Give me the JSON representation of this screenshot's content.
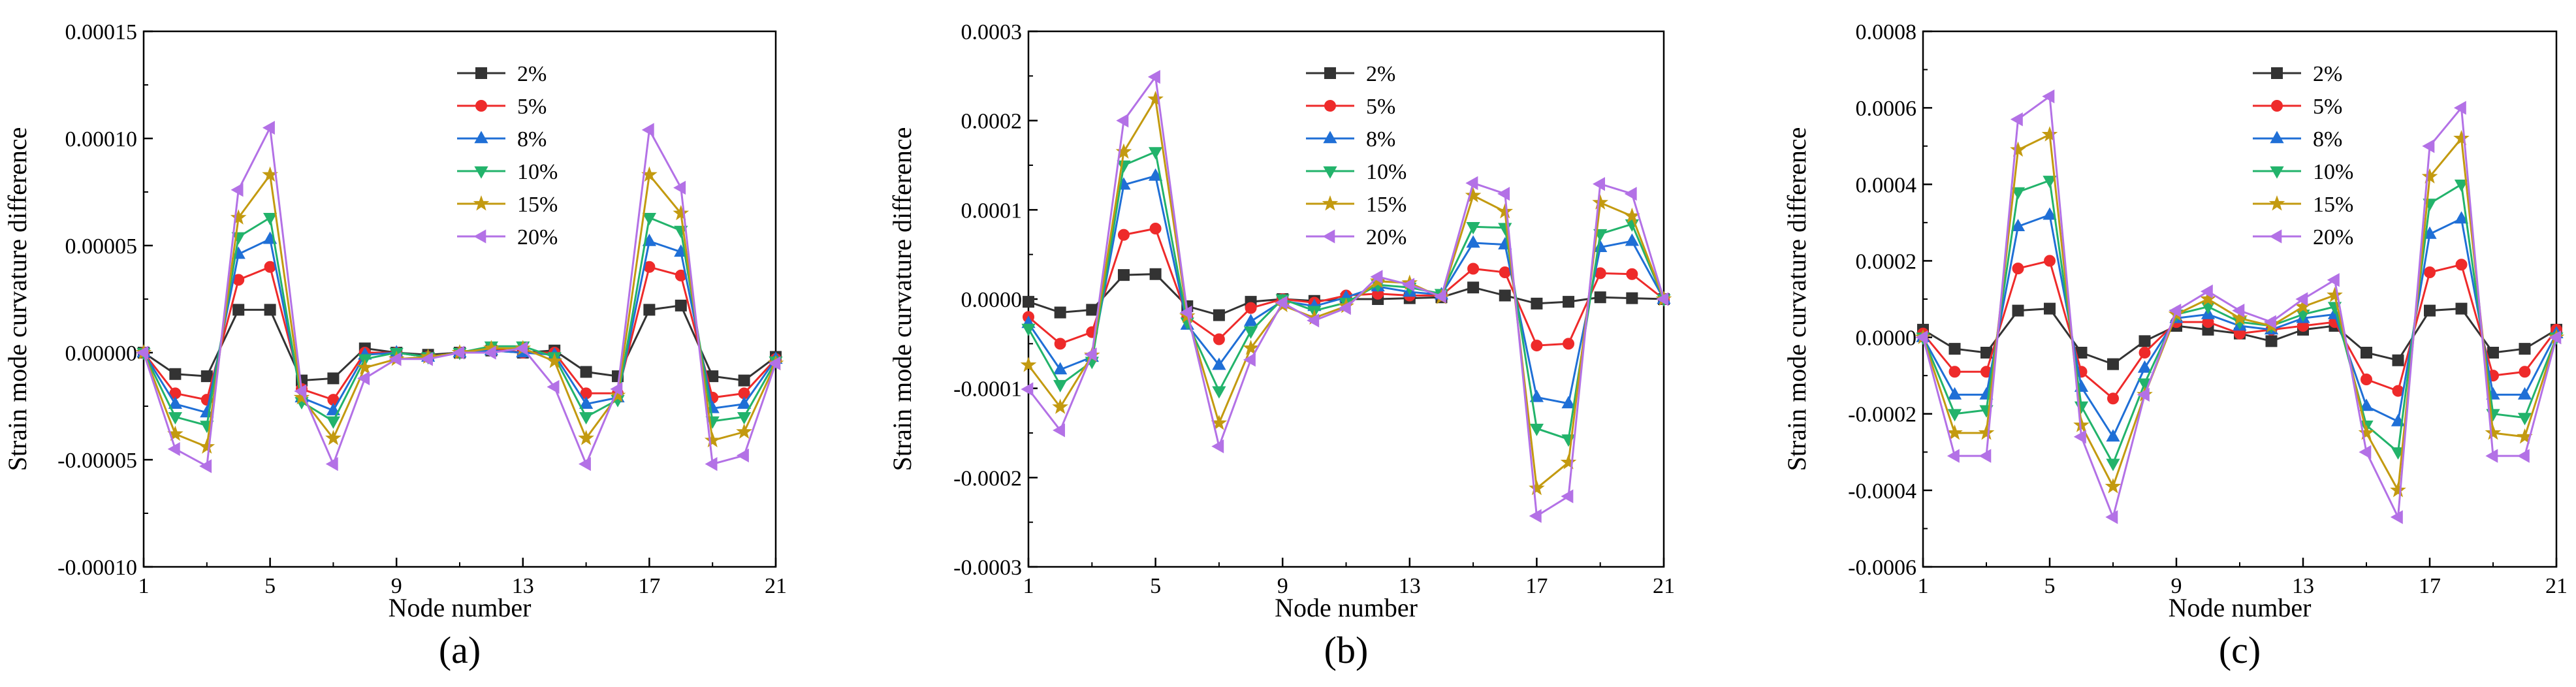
{
  "figure": {
    "panels": [
      {
        "label": "(a)"
      },
      {
        "label": "(b)"
      },
      {
        "label": "(c)"
      }
    ]
  },
  "series_style": [
    {
      "name": "2%",
      "color": "#333333",
      "marker": "square"
    },
    {
      "name": "5%",
      "color": "#ee2a2a",
      "marker": "circle"
    },
    {
      "name": "8%",
      "color": "#1f6fd6",
      "marker": "triangle-up"
    },
    {
      "name": "10%",
      "color": "#22b36b",
      "marker": "triangle-down"
    },
    {
      "name": "15%",
      "color": "#c39a10",
      "marker": "star"
    },
    {
      "name": "20%",
      "color": "#b371e6",
      "marker": "triangle-left"
    }
  ],
  "chart_data": [
    {
      "type": "line",
      "title": "",
      "xlabel": "Node number",
      "ylabel": "Strain mode curvature difference",
      "xlim": [
        1,
        21
      ],
      "ylim": [
        -0.0001,
        0.00015
      ],
      "xticks": [
        1,
        5,
        9,
        13,
        17,
        21
      ],
      "yticks": [
        -0.0001,
        -5e-05,
        0,
        5e-05,
        0.0001,
        0.00015
      ],
      "ytick_labels": [
        "-0.00010",
        "-0.00005",
        "0.00000",
        "0.00005",
        "0.00010",
        "0.00015"
      ],
      "legend_position": "top-center",
      "x": [
        1,
        2,
        3,
        4,
        5,
        6,
        7,
        8,
        9,
        10,
        11,
        12,
        13,
        14,
        15,
        16,
        17,
        18,
        19,
        20,
        21
      ],
      "series": [
        {
          "name": "2%",
          "values": [
            0,
            -1e-05,
            -1.1e-05,
            2e-05,
            2e-05,
            -1.3e-05,
            -1.2e-05,
            2e-06,
            0,
            -1e-06,
            0,
            1e-06,
            0,
            1e-06,
            -9e-06,
            -1.1e-05,
            2e-05,
            2.2e-05,
            -1.1e-05,
            -1.3e-05,
            -2e-06
          ]
        },
        {
          "name": "5%",
          "values": [
            0,
            -1.9e-05,
            -2.2e-05,
            3.4e-05,
            4e-05,
            -1.7e-05,
            -2.2e-05,
            0,
            0,
            -2e-06,
            0,
            2e-06,
            0,
            0,
            -1.9e-05,
            -1.9e-05,
            4e-05,
            3.6e-05,
            -2.1e-05,
            -1.9e-05,
            -3e-06
          ]
        },
        {
          "name": "8%",
          "values": [
            0,
            -2.4e-05,
            -2.8e-05,
            4.6e-05,
            5.3e-05,
            -2.1e-05,
            -2.7e-05,
            -1e-06,
            0,
            -2e-06,
            0,
            1e-06,
            0,
            -1e-06,
            -2.4e-05,
            -2.1e-05,
            5.2e-05,
            4.7e-05,
            -2.6e-05,
            -2.4e-05,
            -3e-06
          ]
        },
        {
          "name": "10%",
          "values": [
            0,
            -3e-05,
            -3.4e-05,
            5.4e-05,
            6.3e-05,
            -2.3e-05,
            -3.2e-05,
            -3e-06,
            0,
            -2e-06,
            0,
            3e-06,
            3e-06,
            -2e-06,
            -3e-05,
            -2.2e-05,
            6.3e-05,
            5.7e-05,
            -3.2e-05,
            -3e-05,
            -4e-06
          ]
        },
        {
          "name": "15%",
          "values": [
            0,
            -3.8e-05,
            -4.4e-05,
            6.3e-05,
            8.3e-05,
            -2.1e-05,
            -4e-05,
            -7e-06,
            -3e-06,
            -2e-06,
            0,
            2e-06,
            2e-06,
            -4e-06,
            -4e-05,
            -2e-05,
            8.3e-05,
            6.5e-05,
            -4.1e-05,
            -3.7e-05,
            -5e-06
          ]
        },
        {
          "name": "20%",
          "values": [
            0,
            -4.5e-05,
            -5.3e-05,
            7.6e-05,
            0.000105,
            -1.8e-05,
            -5.2e-05,
            -1.2e-05,
            -3e-06,
            -3e-06,
            0,
            0,
            2e-06,
            -1.6e-05,
            -5.2e-05,
            -1.7e-05,
            0.000104,
            7.7e-05,
            -5.2e-05,
            -4.8e-05,
            -5e-06
          ]
        }
      ]
    },
    {
      "type": "line",
      "title": "",
      "xlabel": "Node number",
      "ylabel": "Strain mode curvature difference",
      "xlim": [
        1,
        21
      ],
      "ylim": [
        -0.0003,
        0.0003
      ],
      "xticks": [
        1,
        5,
        9,
        13,
        17,
        21
      ],
      "yticks": [
        -0.0003,
        -0.0002,
        -0.0001,
        0,
        0.0001,
        0.0002,
        0.0003
      ],
      "ytick_labels": [
        "-0.0003",
        "-0.0002",
        "-0.0001",
        "0.0000",
        "0.0001",
        "0.0002",
        "0.0003"
      ],
      "legend_position": "top-center",
      "x": [
        1,
        2,
        3,
        4,
        5,
        6,
        7,
        8,
        9,
        10,
        11,
        12,
        13,
        14,
        15,
        16,
        17,
        18,
        19,
        20,
        21
      ],
      "series": [
        {
          "name": "2%",
          "values": [
            -3e-06,
            -1.5e-05,
            -1.2e-05,
            2.7e-05,
            2.8e-05,
            -8e-06,
            -1.8e-05,
            -3e-06,
            0,
            -2e-06,
            0,
            0,
            1e-06,
            2e-06,
            1.3e-05,
            4e-06,
            -5e-06,
            -3e-06,
            2e-06,
            1e-06,
            0
          ]
        },
        {
          "name": "5%",
          "values": [
            -2e-05,
            -5e-05,
            -3.7e-05,
            7.2e-05,
            7.9e-05,
            -2e-05,
            -4.5e-05,
            -1e-05,
            0,
            -4e-06,
            4e-06,
            6e-06,
            4e-06,
            4e-06,
            3.4e-05,
            3e-05,
            -5.2e-05,
            -5e-05,
            2.9e-05,
            2.8e-05,
            0
          ]
        },
        {
          "name": "8%",
          "values": [
            -2.7e-05,
            -7.9e-05,
            -6.5e-05,
            0.000128,
            0.000138,
            -2.9e-05,
            -7.4e-05,
            -2.5e-05,
            -2e-06,
            -8e-06,
            2e-06,
            1.4e-05,
            8e-06,
            5e-06,
            6.3e-05,
            6.1e-05,
            -0.00011,
            -0.000117,
            5.8e-05,
            6.5e-05,
            0
          ]
        },
        {
          "name": "10%",
          "values": [
            -3.3e-05,
            -9.6e-05,
            -7e-05,
            0.00015,
            0.000165,
            -2.6e-05,
            -0.000103,
            -3.6e-05,
            0,
            -1.3e-05,
            -4e-06,
            1.6e-05,
            1.3e-05,
            6e-06,
            8.1e-05,
            8e-05,
            -0.000145,
            -0.000157,
            7.3e-05,
            8.4e-05,
            0
          ]
        },
        {
          "name": "15%",
          "values": [
            -7.4e-05,
            -0.000121,
            -6.3e-05,
            0.000165,
            0.000224,
            -1.9e-05,
            -0.000139,
            -5.5e-05,
            -7e-06,
            -2.1e-05,
            -8e-06,
            2e-05,
            1.8e-05,
            2e-06,
            0.000116,
            9.8e-05,
            -0.000212,
            -0.000183,
            0.000108,
            9.3e-05,
            0
          ]
        },
        {
          "name": "20%",
          "values": [
            -0.000101,
            -0.000147,
            -6.2e-05,
            0.0002,
            0.000249,
            -1.5e-05,
            -0.000165,
            -6.8e-05,
            -4e-06,
            -2.4e-05,
            -1e-05,
            2.5e-05,
            1.6e-05,
            3e-06,
            0.00013,
            0.000118,
            -0.000243,
            -0.000221,
            0.000129,
            0.000118,
            0
          ]
        }
      ]
    },
    {
      "type": "line",
      "title": "",
      "xlabel": "Node number",
      "ylabel": "Strain mode curvature difference",
      "xlim": [
        1,
        21
      ],
      "ylim": [
        -0.0006,
        0.0008
      ],
      "xticks": [
        1,
        5,
        9,
        13,
        17,
        21
      ],
      "yticks": [
        -0.0006,
        -0.0004,
        -0.0002,
        0,
        0.0002,
        0.0004,
        0.0006,
        0.0008
      ],
      "ytick_labels": [
        "-0.0006",
        "-0.0004",
        "-0.0002",
        "0.0000",
        "0.0002",
        "0.0004",
        "0.0006",
        "0.0008"
      ],
      "legend_position": "top-center",
      "x": [
        1,
        2,
        3,
        4,
        5,
        6,
        7,
        8,
        9,
        10,
        11,
        12,
        13,
        14,
        15,
        16,
        17,
        18,
        19,
        20,
        21
      ],
      "series": [
        {
          "name": "2%",
          "values": [
            2e-05,
            -3e-05,
            -4e-05,
            7e-05,
            7.5e-05,
            -4e-05,
            -7e-05,
            -1e-05,
            3e-05,
            2e-05,
            1e-05,
            -1e-05,
            2e-05,
            3e-05,
            -4e-05,
            -6e-05,
            7e-05,
            7.5e-05,
            -4e-05,
            -3e-05,
            2e-05
          ]
        },
        {
          "name": "5%",
          "values": [
            1e-05,
            -9e-05,
            -9e-05,
            0.00018,
            0.0002,
            -9e-05,
            -0.00016,
            -4e-05,
            4e-05,
            4e-05,
            1e-05,
            2e-05,
            3e-05,
            4e-05,
            -0.00011,
            -0.00014,
            0.00017,
            0.00019,
            -0.0001,
            -9e-05,
            2e-05
          ]
        },
        {
          "name": "8%",
          "values": [
            0,
            -0.00015,
            -0.00015,
            0.00029,
            0.00032,
            -0.00013,
            -0.00026,
            -8e-05,
            5e-05,
            6e-05,
            3e-05,
            2e-05,
            5e-05,
            6e-05,
            -0.00018,
            -0.00022,
            0.00027,
            0.00031,
            -0.00015,
            -0.00015,
            1e-05
          ]
        },
        {
          "name": "10%",
          "values": [
            0,
            -0.0002,
            -0.00019,
            0.00038,
            0.00041,
            -0.00018,
            -0.00033,
            -0.00012,
            6e-05,
            8e-05,
            4e-05,
            3e-05,
            6e-05,
            8e-05,
            -0.00023,
            -0.0003,
            0.00035,
            0.0004,
            -0.0002,
            -0.00021,
            0
          ]
        },
        {
          "name": "15%",
          "values": [
            0,
            -0.00025,
            -0.00025,
            0.00049,
            0.00053,
            -0.00023,
            -0.00039,
            -0.00015,
            6e-05,
            0.0001,
            5e-05,
            3e-05,
            8e-05,
            0.00011,
            -0.00025,
            -0.0004,
            0.00042,
            0.00052,
            -0.00025,
            -0.00026,
            0
          ]
        },
        {
          "name": "20%",
          "values": [
            0,
            -0.00031,
            -0.00031,
            0.00057,
            0.00063,
            -0.00026,
            -0.00047,
            -0.00015,
            7e-05,
            0.00012,
            7e-05,
            4e-05,
            0.0001,
            0.00015,
            -0.0003,
            -0.00047,
            0.0005,
            0.0006,
            -0.00031,
            -0.00031,
            0
          ]
        }
      ]
    }
  ]
}
